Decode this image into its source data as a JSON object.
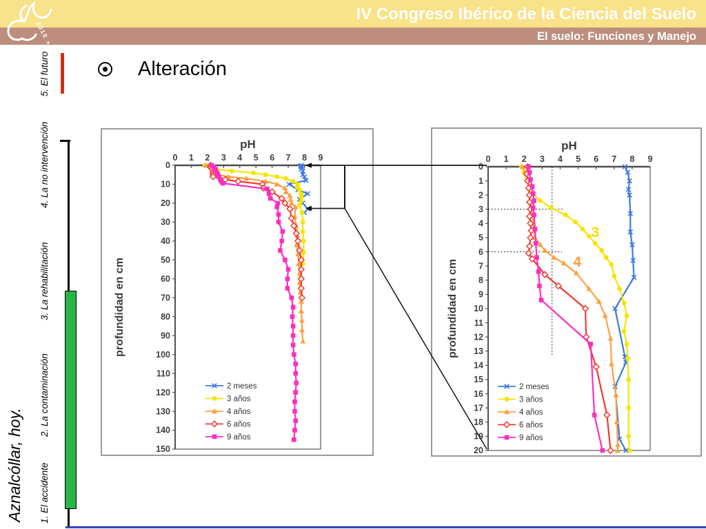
{
  "header": {
    "title": "IV Congreso Ibérico de la Ciencia del Suelo",
    "subtitle": "El suelo: Funciones y Manejo",
    "logo_year": "2010",
    "band_yellow_color": "#f8e28a",
    "band_brown_color": "#bd8e7e"
  },
  "sidebar": {
    "project_label": "Aznalcóllar, hoy.",
    "items": [
      {
        "label": "1. El accidente",
        "active": false
      },
      {
        "label": "2. La contaminación",
        "active": false
      },
      {
        "label": "3. La rehabilitación",
        "active": false
      },
      {
        "label": "4. La no intervención",
        "active": false
      },
      {
        "label": "5. El futuro",
        "active": true
      }
    ],
    "accent_color": "#c93512",
    "progress_color": "#28b446"
  },
  "slide": {
    "bullet_title": "Alteración"
  },
  "annotation": {
    "description": "Right chart is a zoom of the 0-20 cm depth interval of the left chart",
    "points_to_ph": 8.15,
    "detail_top_depth_cm": 0,
    "detail_bottom_depth_cm": 23.5,
    "line_color": "#141414"
  },
  "footer_rule_color": "#3a41b5",
  "chart_data": [
    {
      "type": "line",
      "title": "pH",
      "ylabel": "profundidad en cm",
      "x_axis_position": "top",
      "y_direction": "down",
      "xlim": [
        0,
        9
      ],
      "xticks": [
        0,
        1,
        2,
        3,
        4,
        5,
        6,
        7,
        8,
        9
      ],
      "ylim": [
        0,
        150
      ],
      "ytick_step": 10,
      "grid": false,
      "legend_position": "inside-lower-left",
      "series": [
        {
          "name": "2 meses",
          "color": "#3d79e0",
          "marker": "x",
          "points": [
            [
              0,
              7.8
            ],
            [
              0.5,
              7.75
            ],
            [
              1,
              7.85
            ],
            [
              2,
              7.8
            ],
            [
              3,
              7.9
            ],
            [
              5,
              7.9
            ],
            [
              6,
              8.0
            ],
            [
              8,
              8.1
            ],
            [
              10,
              7.05
            ],
            [
              13,
              7.6
            ],
            [
              15,
              8.2
            ],
            [
              18,
              7.7
            ],
            [
              20,
              7.9
            ],
            [
              23,
              8.2
            ],
            [
              25,
              8.0
            ]
          ]
        },
        {
          "name": "3 años",
          "color": "#f5e400",
          "marker": "circle",
          "points": [
            [
              0,
              1.85
            ],
            [
              1,
              2.15
            ],
            [
              2,
              2.5
            ],
            [
              3,
              3.5
            ],
            [
              4,
              4.85
            ],
            [
              5,
              5.6
            ],
            [
              6,
              6.3
            ],
            [
              7,
              6.85
            ],
            [
              8.5,
              7.3
            ],
            [
              10,
              7.6
            ],
            [
              11.5,
              7.55
            ],
            [
              13,
              7.7
            ],
            [
              15,
              7.8
            ],
            [
              17,
              7.8
            ],
            [
              19,
              7.8
            ],
            [
              21,
              7.7
            ],
            [
              25,
              7.85
            ],
            [
              30,
              7.9
            ],
            [
              35,
              7.9
            ],
            [
              40,
              7.95
            ],
            [
              46,
              7.95
            ],
            [
              52,
              7.9
            ]
          ]
        },
        {
          "name": "4 años",
          "color": "#ff9f40",
          "marker": "triangle",
          "points": [
            [
              0,
              1.9
            ],
            [
              1,
              2.2
            ],
            [
              2,
              2.3
            ],
            [
              3,
              2.4
            ],
            [
              4,
              2.5
            ],
            [
              5,
              2.6
            ],
            [
              6,
              3.3
            ],
            [
              7,
              4.4
            ],
            [
              8.5,
              5.6
            ],
            [
              10,
              6.3
            ],
            [
              12,
              6.8
            ],
            [
              14,
              6.85
            ],
            [
              16,
              7.1
            ],
            [
              18,
              7.15
            ],
            [
              20,
              7.2
            ],
            [
              22,
              7.45
            ],
            [
              27,
              7.4
            ],
            [
              32,
              7.5
            ],
            [
              37,
              7.55
            ],
            [
              42,
              7.5
            ],
            [
              47,
              7.6
            ],
            [
              52,
              7.65
            ],
            [
              57,
              7.7
            ],
            [
              62,
              7.7
            ],
            [
              67,
              7.75
            ],
            [
              72,
              7.8
            ],
            [
              77,
              7.8
            ],
            [
              82,
              7.85
            ],
            [
              87,
              7.85
            ],
            [
              93,
              7.9
            ]
          ]
        },
        {
          "name": "6 años",
          "color": "#f4392b",
          "marker": "diamond-open",
          "points": [
            [
              0,
              2.2
            ],
            [
              1,
              2.2
            ],
            [
              2,
              2.3
            ],
            [
              3,
              2.35
            ],
            [
              4,
              2.35
            ],
            [
              5,
              2.35
            ],
            [
              6,
              2.35
            ],
            [
              7.5,
              3.1
            ],
            [
              8.5,
              3.9
            ],
            [
              10,
              5.4
            ],
            [
              12,
              5.45
            ],
            [
              14,
              6.0
            ],
            [
              17.5,
              6.6
            ],
            [
              20,
              6.8
            ],
            [
              23,
              7.1
            ],
            [
              28,
              7.2
            ],
            [
              32,
              7.35
            ],
            [
              36,
              7.5
            ],
            [
              40,
              7.6
            ],
            [
              45,
              7.7
            ],
            [
              50,
              7.8
            ],
            [
              55,
              7.8
            ],
            [
              60,
              7.8
            ],
            [
              65,
              7.8
            ],
            [
              70,
              7.85
            ]
          ]
        },
        {
          "name": "9 años",
          "color": "#fb2fc1",
          "marker": "square",
          "points": [
            [
              0,
              2.25
            ],
            [
              1,
              2.4
            ],
            [
              2,
              2.5
            ],
            [
              3,
              2.5
            ],
            [
              4,
              2.6
            ],
            [
              5,
              2.65
            ],
            [
              6,
              2.7
            ],
            [
              7.5,
              2.8
            ],
            [
              8.5,
              2.85
            ],
            [
              9.5,
              2.95
            ],
            [
              12.5,
              5.7
            ],
            [
              15,
              5.8
            ],
            [
              17.5,
              5.9
            ],
            [
              20,
              6.35
            ],
            [
              22,
              6.3
            ],
            [
              26,
              6.4
            ],
            [
              30,
              6.4
            ],
            [
              35,
              6.65
            ],
            [
              40,
              6.6
            ],
            [
              45,
              6.5
            ],
            [
              50,
              6.8
            ],
            [
              55,
              7.0
            ],
            [
              60,
              6.95
            ],
            [
              65,
              6.95
            ],
            [
              70,
              7.2
            ],
            [
              75,
              7.3
            ],
            [
              80,
              7.25
            ],
            [
              85,
              7.3
            ],
            [
              90,
              7.3
            ],
            [
              95,
              7.3
            ],
            [
              100,
              7.35
            ],
            [
              105,
              7.45
            ],
            [
              110,
              7.45
            ],
            [
              115,
              7.5
            ],
            [
              120,
              7.45
            ],
            [
              125,
              7.4
            ],
            [
              130,
              7.4
            ],
            [
              135,
              7.45
            ],
            [
              140,
              7.4
            ],
            [
              145,
              7.35
            ]
          ]
        }
      ]
    },
    {
      "type": "line",
      "title": "pH",
      "ylabel": "profundidad en cm",
      "x_axis_position": "top",
      "y_direction": "down",
      "xlim": [
        0,
        9
      ],
      "xticks": [
        0,
        1,
        2,
        3,
        4,
        5,
        6,
        7,
        8,
        9
      ],
      "ylim": [
        0,
        20
      ],
      "ytick_step": 1,
      "grid": false,
      "legend_position": "inside-lower-left",
      "guides": {
        "h": [
          {
            "depth": 3,
            "ph_to": 4.2
          },
          {
            "depth": 6,
            "ph_to": 4.1
          }
        ],
        "v": [
          {
            "ph": 3.55,
            "depth_to": 13.3
          }
        ]
      },
      "inline_labels": [
        {
          "text": "3",
          "ph": 5.95,
          "depth": 4.6,
          "color": "#f2de00"
        },
        {
          "text": "4",
          "ph": 4.95,
          "depth": 6.7,
          "color": "#ff9b3d"
        }
      ],
      "series": [
        {
          "name": "2 meses",
          "color": "#3d79e0",
          "marker": "x",
          "points": [
            [
              0,
              7.6
            ],
            [
              0.4,
              7.75
            ],
            [
              1,
              7.85
            ],
            [
              1.6,
              7.8
            ],
            [
              2,
              7.85
            ],
            [
              3.3,
              7.9
            ],
            [
              4.6,
              7.9
            ],
            [
              5.5,
              8.0
            ],
            [
              6.6,
              8.05
            ],
            [
              7.8,
              8.1
            ],
            [
              10,
              7.05
            ],
            [
              13.4,
              7.6
            ],
            [
              13.8,
              7.65
            ],
            [
              15.5,
              7.05
            ],
            [
              19.2,
              7.3
            ],
            [
              20,
              7.65
            ]
          ]
        },
        {
          "name": "3 años",
          "color": "#f5e400",
          "marker": "circle",
          "points": [
            [
              0,
              1.85
            ],
            [
              0.4,
              2.0
            ],
            [
              0.9,
              2.15
            ],
            [
              1.4,
              2.3
            ],
            [
              1.9,
              2.5
            ],
            [
              2.4,
              2.9
            ],
            [
              2.9,
              3.5
            ],
            [
              3.4,
              4.3
            ],
            [
              3.9,
              4.85
            ],
            [
              4.4,
              5.25
            ],
            [
              4.9,
              5.6
            ],
            [
              5.4,
              5.95
            ],
            [
              5.9,
              6.3
            ],
            [
              6.4,
              6.55
            ],
            [
              6.9,
              6.85
            ],
            [
              7.7,
              7.0
            ],
            [
              8.6,
              7.3
            ],
            [
              9.6,
              7.55
            ],
            [
              10.5,
              7.7
            ],
            [
              11.6,
              7.55
            ],
            [
              12.5,
              7.7
            ],
            [
              13.5,
              7.75
            ],
            [
              15,
              7.8
            ],
            [
              17,
              7.8
            ],
            [
              19,
              7.8
            ],
            [
              20,
              7.85
            ]
          ]
        },
        {
          "name": "4 años",
          "color": "#ff9f40",
          "marker": "triangle",
          "points": [
            [
              0,
              1.9
            ],
            [
              0.5,
              2.1
            ],
            [
              1,
              2.2
            ],
            [
              1.5,
              2.25
            ],
            [
              2,
              2.3
            ],
            [
              2.5,
              2.35
            ],
            [
              3,
              2.4
            ],
            [
              3.5,
              2.45
            ],
            [
              4,
              2.5
            ],
            [
              4.5,
              2.55
            ],
            [
              5,
              2.6
            ],
            [
              5.5,
              2.9
            ],
            [
              5.9,
              3.15
            ],
            [
              6.4,
              3.65
            ],
            [
              6.8,
              4.2
            ],
            [
              7.5,
              4.9
            ],
            [
              8.6,
              5.6
            ],
            [
              9.5,
              6.15
            ],
            [
              10.5,
              6.5
            ],
            [
              12.1,
              6.8
            ],
            [
              13.9,
              6.85
            ],
            [
              16.1,
              7.1
            ],
            [
              18,
              7.15
            ],
            [
              19.6,
              7.2
            ],
            [
              20,
              7.2
            ]
          ]
        },
        {
          "name": "6 años",
          "color": "#f4392b",
          "marker": "diamond-open",
          "points": [
            [
              0,
              2.2
            ],
            [
              0.5,
              2.15
            ],
            [
              1,
              2.2
            ],
            [
              1.5,
              2.25
            ],
            [
              2,
              2.3
            ],
            [
              2.5,
              2.3
            ],
            [
              3,
              2.35
            ],
            [
              3.5,
              2.3
            ],
            [
              4,
              2.35
            ],
            [
              4.5,
              2.4
            ],
            [
              5,
              2.35
            ],
            [
              5.6,
              2.3
            ],
            [
              6.1,
              2.25
            ],
            [
              6.5,
              2.45
            ],
            [
              7.6,
              3.15
            ],
            [
              8.4,
              3.9
            ],
            [
              10,
              5.4
            ],
            [
              12,
              5.45
            ],
            [
              14.1,
              6.0
            ],
            [
              17.5,
              6.6
            ],
            [
              20,
              6.8
            ]
          ]
        },
        {
          "name": "9 años",
          "color": "#fb2fc1",
          "marker": "square",
          "points": [
            [
              0,
              2.25
            ],
            [
              0.4,
              2.3
            ],
            [
              0.9,
              2.35
            ],
            [
              1.4,
              2.45
            ],
            [
              1.9,
              2.5
            ],
            [
              2.4,
              2.55
            ],
            [
              2.9,
              2.5
            ],
            [
              3.4,
              2.55
            ],
            [
              4.4,
              2.6
            ],
            [
              5.4,
              2.65
            ],
            [
              6.4,
              2.7
            ],
            [
              7.4,
              2.8
            ],
            [
              8.4,
              2.85
            ],
            [
              9.4,
              2.95
            ],
            [
              12.5,
              5.7
            ],
            [
              17.5,
              5.9
            ],
            [
              20,
              6.35
            ]
          ]
        }
      ]
    }
  ]
}
